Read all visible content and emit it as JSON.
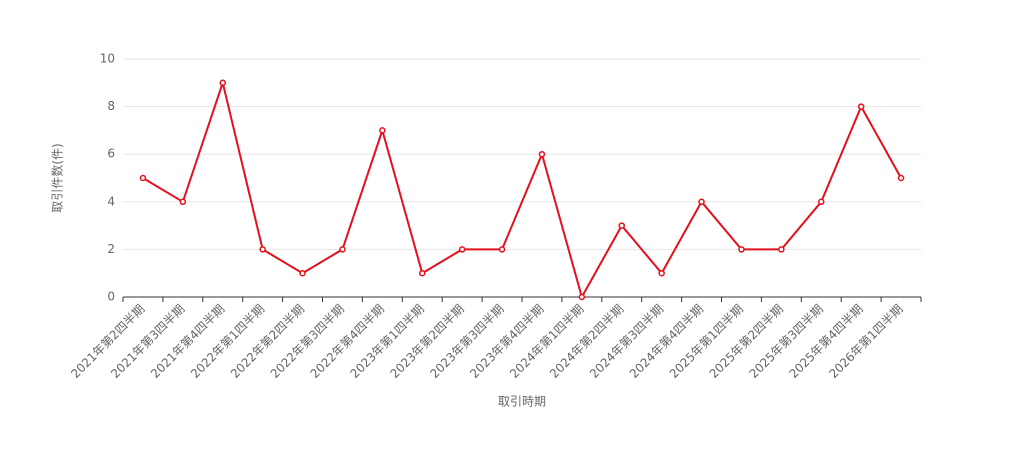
{
  "chart_data": {
    "type": "line",
    "x_label": "取引時期",
    "y_label": "取引件数(件)",
    "categories": [
      "2021年第2四半期",
      "2021年第3四半期",
      "2021年第4四半期",
      "2022年第1四半期",
      "2022年第2四半期",
      "2022年第3四半期",
      "2022年第4四半期",
      "2023年第1四半期",
      "2023年第2四半期",
      "2023年第3四半期",
      "2023年第4四半期",
      "2024年第1四半期",
      "2024年第2四半期",
      "2024年第3四半期",
      "2024年第4四半期",
      "2025年第1四半期",
      "2025年第2四半期",
      "2025年第3四半期",
      "2025年第4四半期",
      "2026年第1四半期"
    ],
    "values": [
      5,
      4,
      9,
      2,
      1,
      2,
      7,
      1,
      2,
      2,
      6,
      0,
      3,
      1,
      4,
      2,
      2,
      4,
      8,
      5
    ],
    "color": "#e3101d",
    "ylim": [
      0,
      10
    ],
    "yticks": [
      0,
      2,
      4,
      6,
      8,
      10
    ],
    "grid": true
  }
}
